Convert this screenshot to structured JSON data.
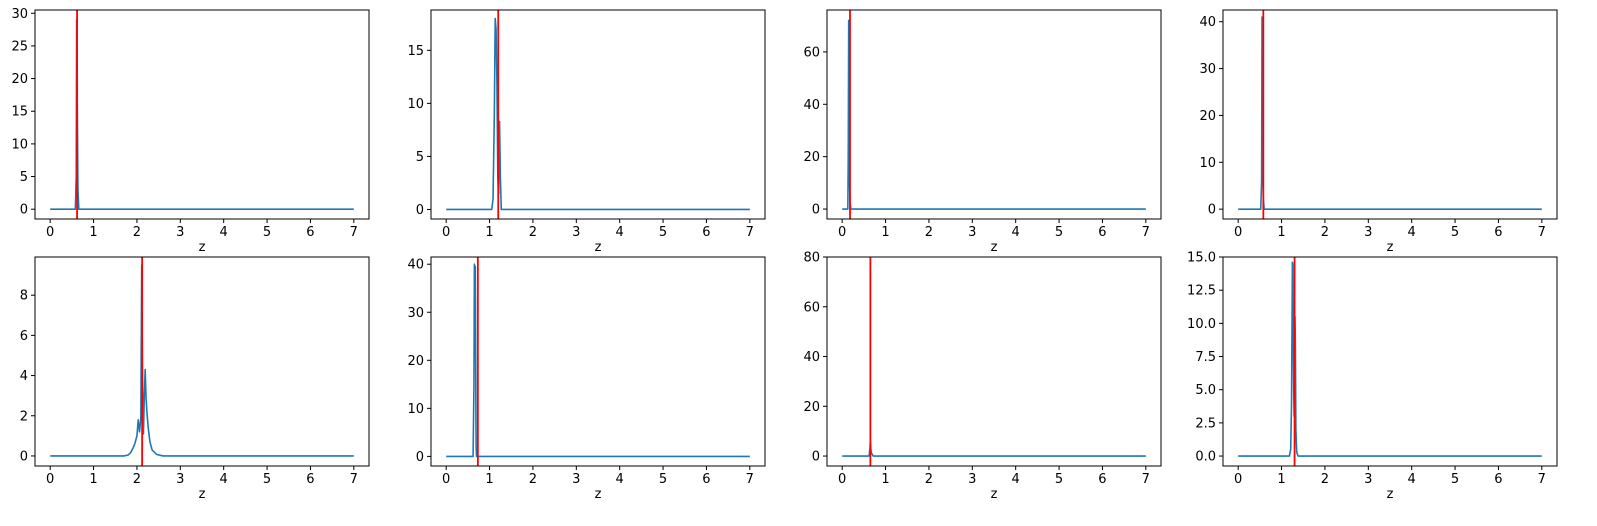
{
  "colors": {
    "series": "#1f77b4",
    "reference_line": "#ff0000",
    "axes": "#000000"
  },
  "chart_data": [
    {
      "type": "line",
      "xlabel": "z",
      "xlim": [
        -0.35,
        7.35
      ],
      "ylim": [
        -1.5,
        30.5
      ],
      "xticks": [
        0,
        1,
        2,
        3,
        4,
        5,
        6,
        7
      ],
      "yticks": [
        0,
        5,
        10,
        15,
        20,
        25,
        30
      ],
      "vline": 0.62,
      "series": [
        {
          "x": [
            0,
            0.58,
            0.6,
            0.61,
            0.62,
            0.63,
            0.64,
            0.66,
            7
          ],
          "y": [
            0,
            0,
            5,
            29,
            25,
            12,
            3,
            0,
            0
          ]
        }
      ]
    },
    {
      "type": "line",
      "xlabel": "z",
      "xlim": [
        -0.35,
        7.35
      ],
      "ylim": [
        -0.9,
        18.8
      ],
      "xticks": [
        0,
        1,
        2,
        3,
        4,
        5,
        6,
        7
      ],
      "yticks": [
        0,
        5,
        10,
        15
      ],
      "vline": 1.2,
      "series": [
        {
          "x": [
            0,
            1.05,
            1.08,
            1.11,
            1.13,
            1.15,
            1.17,
            1.19,
            1.21,
            1.23,
            1.25,
            1.27,
            7
          ],
          "y": [
            0,
            0,
            1,
            9,
            18,
            17,
            12,
            3,
            1.5,
            8.3,
            3,
            0,
            0
          ]
        }
      ]
    },
    {
      "type": "line",
      "xlabel": "z",
      "xlim": [
        -0.35,
        7.35
      ],
      "ylim": [
        -3.8,
        76
      ],
      "xticks": [
        0,
        1,
        2,
        3,
        4,
        5,
        6,
        7
      ],
      "yticks": [
        0,
        20,
        40,
        60
      ],
      "vline": 0.18,
      "series": [
        {
          "x": [
            0,
            0.13,
            0.14,
            0.15,
            0.16,
            0.17,
            0.18,
            0.2,
            7
          ],
          "y": [
            0,
            0,
            20,
            72,
            50,
            10,
            3,
            0,
            0
          ]
        }
      ]
    },
    {
      "type": "line",
      "xlabel": "z",
      "xlim": [
        -0.35,
        7.35
      ],
      "ylim": [
        -2.1,
        42.5
      ],
      "xticks": [
        0,
        1,
        2,
        3,
        4,
        5,
        6,
        7
      ],
      "yticks": [
        0,
        10,
        20,
        30,
        40
      ],
      "vline": 0.58,
      "series": [
        {
          "x": [
            0,
            0.52,
            0.54,
            0.55,
            0.56,
            0.57,
            0.58,
            0.6,
            7
          ],
          "y": [
            0,
            0,
            6,
            41,
            30,
            8,
            2,
            0,
            0
          ]
        }
      ]
    },
    {
      "type": "line",
      "xlabel": "z",
      "xlim": [
        -0.35,
        7.35
      ],
      "ylim": [
        -0.5,
        9.9
      ],
      "xticks": [
        0,
        1,
        2,
        3,
        4,
        5,
        6,
        7
      ],
      "yticks": [
        0,
        2,
        4,
        6,
        8
      ],
      "vline": 2.12,
      "series": [
        {
          "x": [
            0,
            1.7,
            1.8,
            1.85,
            1.9,
            1.95,
            2.0,
            2.03,
            2.06,
            2.09,
            2.11,
            2.13,
            2.15,
            2.17,
            2.19,
            2.21,
            2.23,
            2.26,
            2.3,
            2.35,
            2.45,
            2.6,
            7
          ],
          "y": [
            0,
            0,
            0.05,
            0.15,
            0.35,
            0.6,
            1.0,
            1.8,
            1.2,
            1.9,
            9.5,
            3.5,
            1.1,
            3.0,
            4.3,
            2.9,
            2.2,
            1.4,
            0.7,
            0.3,
            0.08,
            0,
            0
          ]
        }
      ]
    },
    {
      "type": "line",
      "xlabel": "z",
      "xlim": [
        -0.35,
        7.35
      ],
      "ylim": [
        -2.0,
        41.5
      ],
      "xticks": [
        0,
        1,
        2,
        3,
        4,
        5,
        6,
        7
      ],
      "yticks": [
        0,
        10,
        20,
        30,
        40
      ],
      "vline": 0.73,
      "series": [
        {
          "x": [
            0,
            0.62,
            0.64,
            0.65,
            0.66,
            0.67,
            0.68,
            0.69,
            0.7,
            7
          ],
          "y": [
            0,
            0,
            15,
            40,
            39.5,
            39.5,
            20,
            2,
            0,
            0
          ]
        }
      ]
    },
    {
      "type": "line",
      "xlabel": "z",
      "xlim": [
        -0.35,
        7.35
      ],
      "ylim": [
        -4.0,
        80
      ],
      "xticks": [
        0,
        1,
        2,
        3,
        4,
        5,
        6,
        7
      ],
      "yticks": [
        0,
        20,
        40,
        60,
        80
      ],
      "vline": 0.65,
      "series": [
        {
          "x": [
            0,
            0.62,
            0.64,
            0.65,
            0.66,
            0.67,
            0.68,
            0.7,
            0.72,
            7
          ],
          "y": [
            0,
            0,
            3,
            6,
            3,
            1.5,
            1,
            0.4,
            0,
            0
          ]
        }
      ]
    },
    {
      "type": "line",
      "xlabel": "z",
      "xlim": [
        -0.35,
        7.35
      ],
      "ylim": [
        -0.75,
        15.0
      ],
      "xticks": [
        0,
        1,
        2,
        3,
        4,
        5,
        6,
        7
      ],
      "yticks": [
        0.0,
        2.5,
        5.0,
        7.5,
        10.0,
        12.5,
        15.0
      ],
      "ytick_labels": [
        "0.0",
        "2.5",
        "5.0",
        "7.5",
        "10.0",
        "12.5",
        "15.0"
      ],
      "vline": 1.3,
      "series": [
        {
          "x": [
            0,
            1.18,
            1.21,
            1.23,
            1.25,
            1.26,
            1.27,
            1.28,
            1.29,
            1.3,
            1.31,
            1.32,
            1.33,
            1.35,
            1.38,
            7
          ],
          "y": [
            0,
            0,
            0.5,
            4,
            14.6,
            14.4,
            10,
            5,
            3,
            8,
            10.5,
            8,
            2,
            0.3,
            0,
            0
          ]
        }
      ]
    }
  ]
}
